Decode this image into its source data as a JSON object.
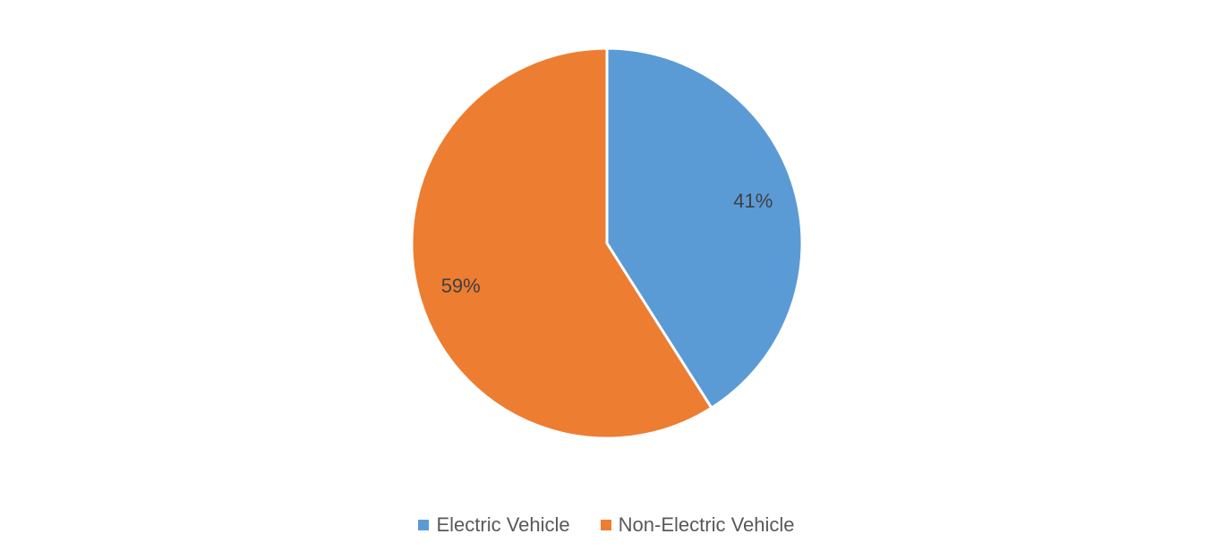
{
  "chart_data": {
    "type": "pie",
    "categories": [
      "Electric Vehicle",
      "Non-Electric Vehicle"
    ],
    "values": [
      41,
      59
    ],
    "labels": [
      "41%",
      "59%"
    ],
    "colors": [
      "#5B9BD5",
      "#ED7D31"
    ],
    "start_angle_deg": 0,
    "direction": "clockwise",
    "legend_position": "bottom",
    "title": ""
  }
}
